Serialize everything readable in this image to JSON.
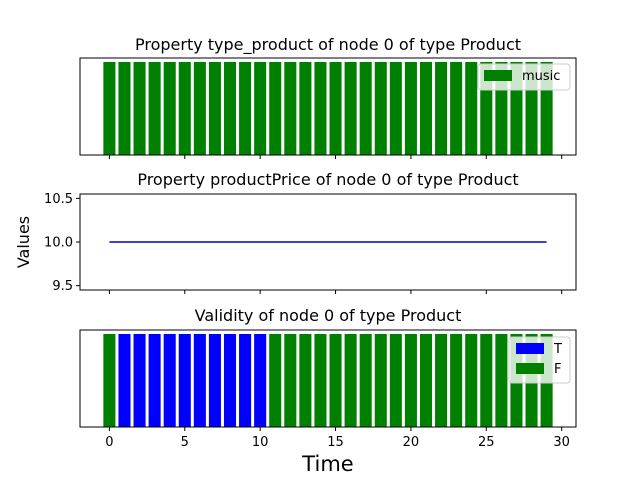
{
  "figure": {
    "ylabel": "Values",
    "xlabel": "Time",
    "xlim": [
      -1.95,
      30.95
    ],
    "xticks": [
      0,
      5,
      10,
      15,
      20,
      25,
      30
    ]
  },
  "colors": {
    "music": "#008000",
    "T": "#0000ff",
    "F": "#008000",
    "line": "#0000cc"
  },
  "chart_data": [
    {
      "type": "bar",
      "title": "Property type_product of node 0 of type Product",
      "x": [
        0,
        1,
        2,
        3,
        4,
        5,
        6,
        7,
        8,
        9,
        10,
        11,
        12,
        13,
        14,
        15,
        16,
        17,
        18,
        19,
        20,
        21,
        22,
        23,
        24,
        25,
        26,
        27,
        28,
        29
      ],
      "categories_by_x": [
        "music",
        "music",
        "music",
        "music",
        "music",
        "music",
        "music",
        "music",
        "music",
        "music",
        "music",
        "music",
        "music",
        "music",
        "music",
        "music",
        "music",
        "music",
        "music",
        "music",
        "music",
        "music",
        "music",
        "music",
        "music",
        "music",
        "music",
        "music",
        "music",
        "music"
      ],
      "legend": [
        "music"
      ],
      "legend_position": "top-right",
      "show_yticks": false
    },
    {
      "type": "line",
      "title": "Property productPrice of node 0 of type Product",
      "x": [
        0,
        29
      ],
      "y": [
        10.0,
        10.0
      ],
      "ylim": [
        9.45,
        10.55
      ],
      "yticks": [
        "9.5",
        "10.0",
        "10.5"
      ],
      "yticks_values": [
        9.5,
        10.0,
        10.5
      ]
    },
    {
      "type": "bar",
      "title": "Validity of node 0 of type Product",
      "x": [
        0,
        1,
        2,
        3,
        4,
        5,
        6,
        7,
        8,
        9,
        10,
        11,
        12,
        13,
        14,
        15,
        16,
        17,
        18,
        19,
        20,
        21,
        22,
        23,
        24,
        25,
        26,
        27,
        28,
        29
      ],
      "categories_by_x": [
        "F",
        "T",
        "T",
        "T",
        "T",
        "T",
        "T",
        "T",
        "T",
        "T",
        "T",
        "F",
        "F",
        "F",
        "F",
        "F",
        "F",
        "F",
        "F",
        "F",
        "F",
        "F",
        "F",
        "F",
        "F",
        "F",
        "F",
        "F",
        "F",
        "F"
      ],
      "legend": [
        "T",
        "F"
      ],
      "legend_position": "top-right",
      "show_yticks": false
    }
  ]
}
